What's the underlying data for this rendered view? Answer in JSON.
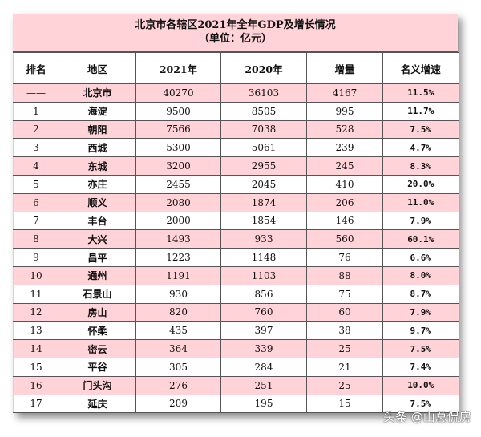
{
  "title": "北京市各辖区2021年全年GDP及增长情况",
  "subtitle": "（单位：亿元）",
  "headers": [
    "排名",
    "地区",
    "2021年",
    "2020年",
    "增量",
    "名义增速"
  ],
  "rows": [
    {
      "rank": "——",
      "region": "北京市",
      "gdp2021": "40270",
      "gdp2020": "36103",
      "increase": "4167",
      "growth": "11.5%"
    },
    {
      "rank": "1",
      "region": "海淀",
      "gdp2021": "9500",
      "gdp2020": "8505",
      "increase": "995",
      "growth": "11.7%"
    },
    {
      "rank": "2",
      "region": "朝阳",
      "gdp2021": "7566",
      "gdp2020": "7038",
      "increase": "528",
      "growth": "7.5%"
    },
    {
      "rank": "3",
      "region": "西城",
      "gdp2021": "5300",
      "gdp2020": "5061",
      "increase": "239",
      "growth": "4.7%"
    },
    {
      "rank": "4",
      "region": "东城",
      "gdp2021": "3200",
      "gdp2020": "2955",
      "increase": "245",
      "growth": "8.3%"
    },
    {
      "rank": "5",
      "region": "亦庄",
      "gdp2021": "2455",
      "gdp2020": "2045",
      "increase": "410",
      "growth": "20.0%"
    },
    {
      "rank": "6",
      "region": "顺义",
      "gdp2021": "2080",
      "gdp2020": "1874",
      "increase": "206",
      "growth": "11.0%"
    },
    {
      "rank": "7",
      "region": "丰台",
      "gdp2021": "2000",
      "gdp2020": "1854",
      "increase": "146",
      "growth": "7.9%"
    },
    {
      "rank": "8",
      "region": "大兴",
      "gdp2021": "1493",
      "gdp2020": "933",
      "increase": "560",
      "growth": "60.1%"
    },
    {
      "rank": "9",
      "region": "昌平",
      "gdp2021": "1223",
      "gdp2020": "1148",
      "increase": "76",
      "growth": "6.6%"
    },
    {
      "rank": "10",
      "region": "通州",
      "gdp2021": "1191",
      "gdp2020": "1103",
      "increase": "88",
      "growth": "8.0%"
    },
    {
      "rank": "11",
      "region": "石景山",
      "gdp2021": "930",
      "gdp2020": "856",
      "increase": "75",
      "growth": "8.7%"
    },
    {
      "rank": "12",
      "region": "房山",
      "gdp2021": "820",
      "gdp2020": "760",
      "increase": "60",
      "growth": "7.9%"
    },
    {
      "rank": "13",
      "region": "怀柔",
      "gdp2021": "435",
      "gdp2020": "397",
      "increase": "38",
      "growth": "9.7%"
    },
    {
      "rank": "14",
      "region": "密云",
      "gdp2021": "364",
      "gdp2020": "339",
      "increase": "25",
      "growth": "7.5%"
    },
    {
      "rank": "15",
      "region": "平谷",
      "gdp2021": "305",
      "gdp2020": "284",
      "increase": "21",
      "growth": "7.4%"
    },
    {
      "rank": "16",
      "region": "门头沟",
      "gdp2021": "276",
      "gdp2020": "251",
      "increase": "25",
      "growth": "10.0%"
    },
    {
      "rank": "17",
      "region": "延庆",
      "gdp2021": "209",
      "gdp2020": "195",
      "increase": "15",
      "growth": "7.5%"
    }
  ],
  "watermark": "头条 @山总侃房",
  "colors": {
    "pink_row": "#ffd3d8",
    "white_row": "#ffffff",
    "border": "#555555"
  }
}
